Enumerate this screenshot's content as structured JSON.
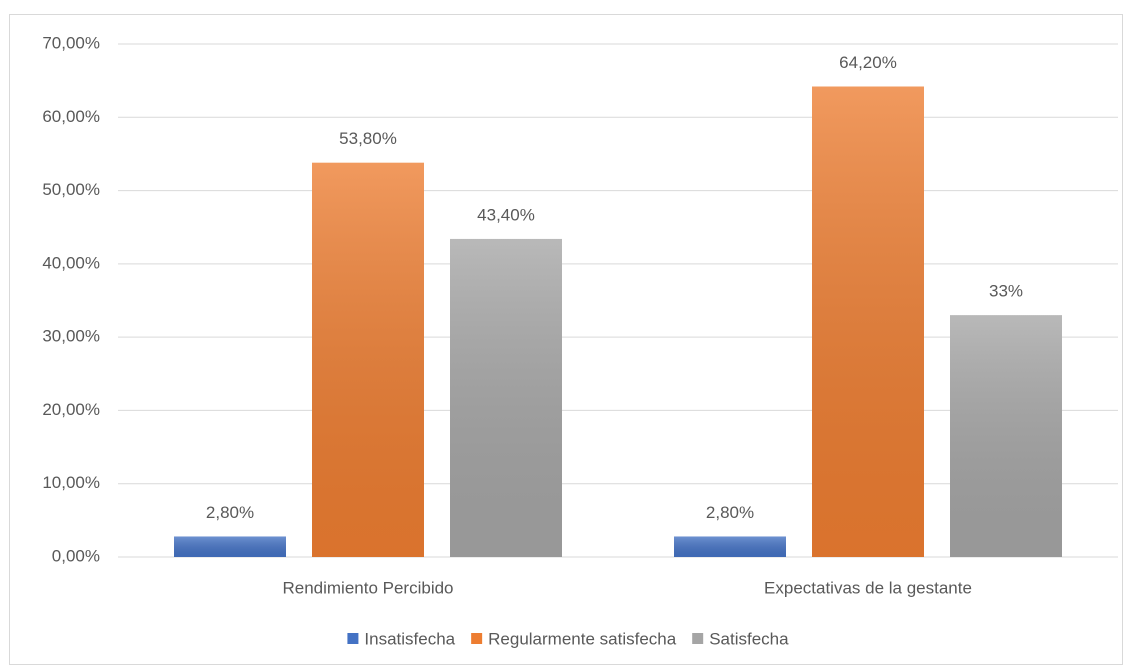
{
  "chart_data": {
    "type": "bar",
    "categories": [
      "Rendimiento Percibido",
      "Expectativas de la gestante"
    ],
    "series": [
      {
        "name": "Insatisfecha",
        "color": "#4472c4",
        "values": [
          2.8,
          2.8
        ],
        "value_labels": [
          "2,80%",
          "2,80%"
        ]
      },
      {
        "name": "Regularmente satisfecha",
        "color": "#ed7d31",
        "values": [
          53.8,
          64.2
        ],
        "value_labels": [
          "53,80%",
          "64,20%"
        ]
      },
      {
        "name": "Satisfecha",
        "color": "#a5a5a5",
        "values": [
          43.4,
          33
        ],
        "value_labels": [
          "43,40%",
          "33%"
        ]
      }
    ],
    "ylim": [
      0,
      70
    ],
    "yticks": [
      {
        "value": 0,
        "label": "0,00%"
      },
      {
        "value": 10,
        "label": "10,00%"
      },
      {
        "value": 20,
        "label": "20,00%"
      },
      {
        "value": 30,
        "label": "30,00%"
      },
      {
        "value": 40,
        "label": "40,00%"
      },
      {
        "value": 50,
        "label": "50,00%"
      },
      {
        "value": 60,
        "label": "60,00%"
      },
      {
        "value": 70,
        "label": "70,00%"
      }
    ],
    "grid": true,
    "legend": "bottom"
  }
}
